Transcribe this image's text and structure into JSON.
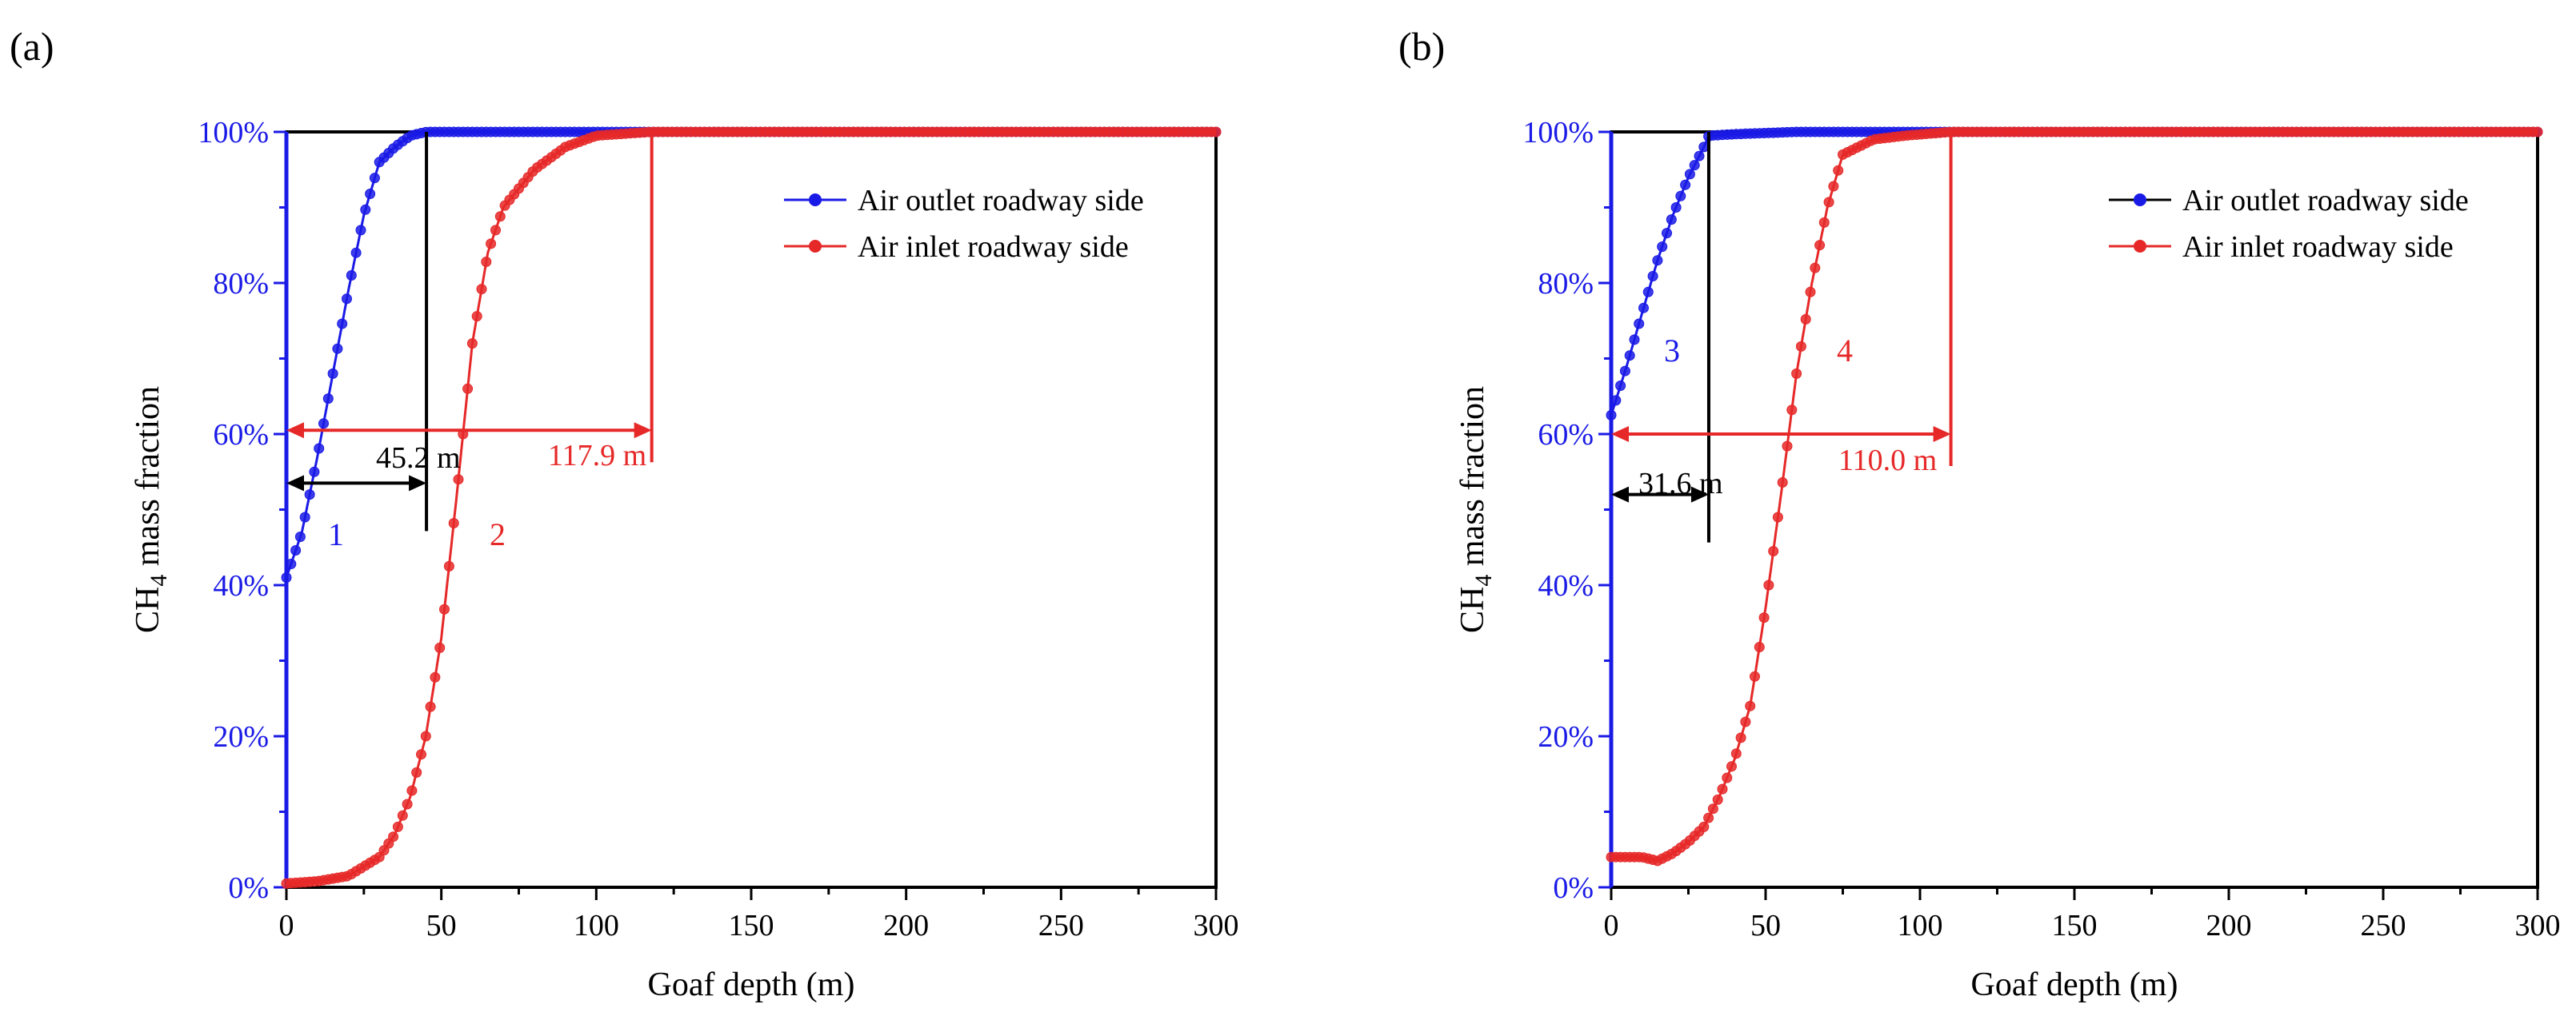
{
  "chart_data": [
    {
      "panel_label": "(a)",
      "type": "line",
      "title": "",
      "xlabel": "Goaf depth (m)",
      "ylabel_main": "CH",
      "ylabel_sub": "4",
      "ylabel_rest": " mass fraction",
      "xlim": [
        0,
        300
      ],
      "ylim": [
        0,
        1
      ],
      "xticks": [
        0,
        50,
        100,
        150,
        200,
        250,
        300
      ],
      "xtick_labels": [
        "0",
        "50",
        "100",
        "150",
        "200",
        "250",
        "300"
      ],
      "yticks": [
        0,
        0.2,
        0.4,
        0.6,
        0.8,
        1.0
      ],
      "ytick_labels": [
        "0%",
        "20%",
        "40%",
        "60%",
        "80%",
        "100%"
      ],
      "legend_position": "top-right",
      "series": [
        {
          "name": "Air outlet roadway side",
          "color": "#1a1ae6",
          "curve_label": "1",
          "x": [
            0,
            5,
            10,
            15,
            20,
            25,
            30,
            35,
            40,
            45.2,
            60,
            80,
            100,
            150,
            200,
            250,
            300
          ],
          "y": [
            0.41,
            0.47,
            0.57,
            0.68,
            0.79,
            0.89,
            0.96,
            0.98,
            0.995,
            1.0,
            1.0,
            1.0,
            1.0,
            1.0,
            1.0,
            1.0,
            1.0
          ]
        },
        {
          "name": "Air inlet roadway side",
          "color": "#e62828",
          "curve_label": "2",
          "x": [
            0,
            10,
            20,
            30,
            35,
            40,
            45,
            50,
            55,
            60,
            65,
            70,
            80,
            90,
            100,
            117.9,
            150,
            200,
            250,
            300
          ],
          "y": [
            0.005,
            0.008,
            0.015,
            0.04,
            0.07,
            0.12,
            0.2,
            0.33,
            0.52,
            0.72,
            0.84,
            0.9,
            0.95,
            0.98,
            0.995,
            1.0,
            1.0,
            1.0,
            1.0,
            1.0
          ]
        }
      ],
      "annotations": [
        {
          "text": "45.2 m",
          "color": "#000000",
          "x_start": 0,
          "x_end": 45.2,
          "y": 0.535,
          "drop_from": 1.0
        },
        {
          "text": "117.9 m",
          "color": "#e62828",
          "x_start": 0,
          "x_end": 117.9,
          "y": 0.605,
          "drop_from": 1.0
        }
      ]
    },
    {
      "panel_label": "(b)",
      "type": "line",
      "title": "",
      "xlabel": "Goaf depth (m)",
      "ylabel_main": "CH",
      "ylabel_sub": "4",
      "ylabel_rest": " mass fraction",
      "xlim": [
        0,
        300
      ],
      "ylim": [
        0,
        1
      ],
      "xticks": [
        0,
        50,
        100,
        150,
        200,
        250,
        300
      ],
      "xtick_labels": [
        "0",
        "50",
        "100",
        "150",
        "200",
        "250",
        "300"
      ],
      "yticks": [
        0,
        0.2,
        0.4,
        0.6,
        0.8,
        1.0
      ],
      "ytick_labels": [
        "0%",
        "20%",
        "40%",
        "60%",
        "80%",
        "100%"
      ],
      "legend_position": "top-right",
      "series": [
        {
          "name": "Air outlet roadway side",
          "color": "#1a1ae6",
          "legend_line_color": "#000000",
          "curve_label": "3",
          "x": [
            0,
            5,
            10,
            15,
            20,
            25,
            30,
            31.6,
            40,
            60,
            80,
            100,
            150,
            200,
            250,
            300
          ],
          "y": [
            0.625,
            0.69,
            0.76,
            0.83,
            0.89,
            0.94,
            0.98,
            0.995,
            0.997,
            1.0,
            1.0,
            1.0,
            1.0,
            1.0,
            1.0,
            1.0
          ]
        },
        {
          "name": "Air inlet roadway side",
          "color": "#e62828",
          "curve_label": "4",
          "x": [
            0,
            10,
            15,
            20,
            25,
            30,
            35,
            40,
            45,
            50,
            55,
            60,
            65,
            70,
            75,
            85,
            95,
            110,
            150,
            200,
            250,
            300
          ],
          "y": [
            0.04,
            0.04,
            0.035,
            0.045,
            0.06,
            0.08,
            0.12,
            0.17,
            0.24,
            0.37,
            0.52,
            0.68,
            0.8,
            0.9,
            0.97,
            0.99,
            0.995,
            1.0,
            1.0,
            1.0,
            1.0,
            1.0
          ]
        }
      ],
      "annotations": [
        {
          "text": "31.6 m",
          "color": "#000000",
          "x_start": 0,
          "x_end": 31.6,
          "y": 0.52,
          "drop_from": 1.0
        },
        {
          "text": "110.0 m",
          "color": "#e62828",
          "x_start": 0,
          "x_end": 110.0,
          "y": 0.6,
          "drop_from": 1.0
        }
      ]
    }
  ]
}
